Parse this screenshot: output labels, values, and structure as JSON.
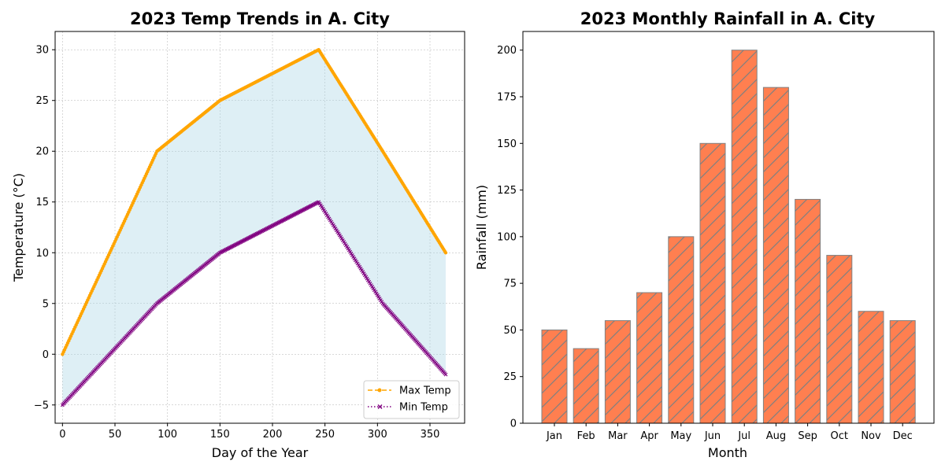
{
  "chart_data": [
    {
      "type": "line",
      "title": "2023 Temp Trends in A. City",
      "xlabel": "Day of the Year",
      "ylabel": "Temperature (°C)",
      "xlim": [
        -7,
        383
      ],
      "ylim": [
        -6.8,
        31.8
      ],
      "xticks": [
        0,
        50,
        100,
        150,
        200,
        250,
        300,
        350
      ],
      "yticks": [
        -5,
        0,
        5,
        10,
        15,
        20,
        25,
        30
      ],
      "grid": true,
      "legend_position": "lower-right",
      "fill_between": {
        "color": "#add8e6"
      },
      "series": [
        {
          "name": "Max Temp",
          "color": "#ffa500",
          "style": "dashed",
          "marker": "dot",
          "points": [
            [
              0,
              0
            ],
            [
              90,
              20
            ],
            [
              150,
              25
            ],
            [
              244,
              30
            ],
            [
              305,
              20
            ],
            [
              365,
              10
            ]
          ]
        },
        {
          "name": "Min Temp",
          "color": "#800080",
          "style": "dotted",
          "marker": "x",
          "points": [
            [
              0,
              -5
            ],
            [
              90,
              5
            ],
            [
              150,
              10
            ],
            [
              244,
              15
            ],
            [
              305,
              5
            ],
            [
              365,
              -2
            ]
          ]
        }
      ]
    },
    {
      "type": "bar",
      "title": "2023 Monthly Rainfall in A. City",
      "xlabel": "Month",
      "ylabel": "Rainfall (mm)",
      "categories": [
        "Jan",
        "Feb",
        "Mar",
        "Apr",
        "May",
        "Jun",
        "Jul",
        "Aug",
        "Sep",
        "Oct",
        "Nov",
        "Dec"
      ],
      "values": [
        50,
        40,
        55,
        70,
        100,
        150,
        200,
        180,
        120,
        90,
        60,
        55
      ],
      "ylim": [
        0,
        210
      ],
      "yticks": [
        0,
        25,
        50,
        75,
        100,
        125,
        150,
        175,
        200
      ],
      "grid": false,
      "bar_color": "#ff7f50",
      "edge_color": "#808080",
      "hatch": "diagonal"
    }
  ]
}
